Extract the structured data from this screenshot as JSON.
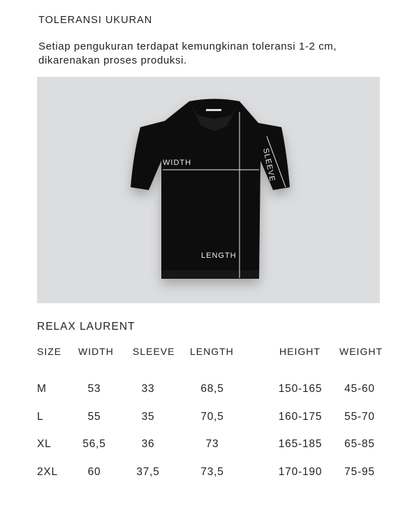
{
  "title": "TOLERANSI UKURAN",
  "note": "Setiap pengukuran terdapat kemungkinan toleransi 1-2 cm, dikarenakan proses produksi.",
  "figure": {
    "labels": {
      "width": "WIDTH",
      "sleeve": "SLEEVE",
      "length": "LENGTH"
    }
  },
  "product": "RELAX LAURENT",
  "table": {
    "headers": [
      "SIZE",
      "WIDTH",
      "SLEEVE",
      "LENGTH",
      "HEIGHT",
      "WEIGHT"
    ],
    "rows": [
      [
        "M",
        "53",
        "33",
        "68,5",
        "150-165",
        "45-60"
      ],
      [
        "L",
        "55",
        "35",
        "70,5",
        "160-175",
        "55-70"
      ],
      [
        "XL",
        "56,5",
        "36",
        "73",
        "165-185",
        "65-85"
      ],
      [
        "2XL",
        "60",
        "37,5",
        "73,5",
        "170-190",
        "75-95"
      ]
    ]
  }
}
